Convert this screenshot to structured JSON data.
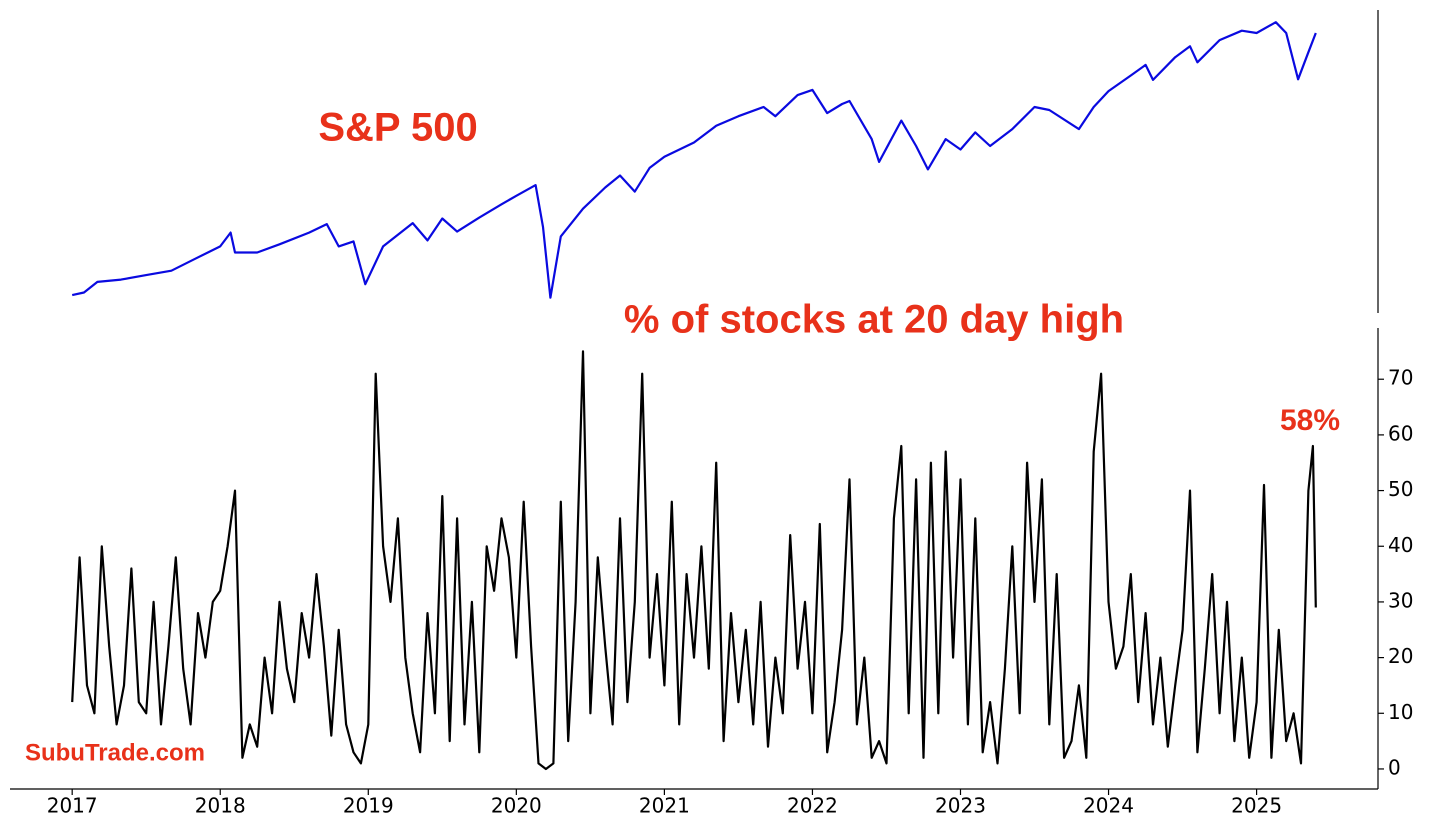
{
  "chart_data": [
    {
      "type": "line",
      "title": "S&P 500",
      "color": "#0a0ae0",
      "log_scale": true,
      "y_axis_side": "right",
      "xlim": [
        2016.58,
        2025.82
      ],
      "ylim": [
        2115,
        6420
      ],
      "x": [
        2017.0,
        2017.08,
        2017.17,
        2017.33,
        2017.5,
        2017.67,
        2017.83,
        2018.0,
        2018.07,
        2018.1,
        2018.25,
        2018.4,
        2018.6,
        2018.72,
        2018.8,
        2018.9,
        2018.98,
        2019.1,
        2019.3,
        2019.4,
        2019.5,
        2019.6,
        2019.75,
        2019.9,
        2020.0,
        2020.13,
        2020.18,
        2020.23,
        2020.3,
        2020.45,
        2020.6,
        2020.7,
        2020.8,
        2020.9,
        2021.0,
        2021.2,
        2021.35,
        2021.5,
        2021.67,
        2021.75,
        2021.9,
        2022.0,
        2022.1,
        2022.2,
        2022.25,
        2022.4,
        2022.45,
        2022.6,
        2022.7,
        2022.78,
        2022.9,
        2023.0,
        2023.1,
        2023.2,
        2023.35,
        2023.5,
        2023.6,
        2023.8,
        2023.9,
        2024.0,
        2024.15,
        2024.25,
        2024.3,
        2024.45,
        2024.55,
        2024.6,
        2024.75,
        2024.9,
        2025.0,
        2025.13,
        2025.2,
        2025.28,
        2025.35,
        2025.4
      ],
      "values": [
        2258,
        2280,
        2370,
        2390,
        2430,
        2470,
        2580,
        2700,
        2840,
        2640,
        2640,
        2720,
        2840,
        2930,
        2700,
        2750,
        2350,
        2700,
        2940,
        2760,
        2990,
        2850,
        3000,
        3150,
        3250,
        3380,
        2900,
        2237,
        2800,
        3100,
        3350,
        3500,
        3300,
        3600,
        3750,
        3950,
        4200,
        4350,
        4500,
        4350,
        4700,
        4790,
        4400,
        4550,
        4600,
        4000,
        3680,
        4280,
        3900,
        3580,
        4000,
        3850,
        4100,
        3900,
        4150,
        4500,
        4450,
        4150,
        4500,
        4770,
        5050,
        5250,
        4970,
        5400,
        5620,
        5300,
        5750,
        5950,
        5900,
        6140,
        5900,
        4980,
        5500,
        5900
      ]
    },
    {
      "type": "line",
      "title": "% of stocks at 20 day high",
      "annotation": "58%",
      "watermark": "SubuTrade.com",
      "color": "#000000",
      "y_axis_side": "right",
      "xlim": [
        2016.58,
        2025.82
      ],
      "ylim": [
        -3.6,
        79.2
      ],
      "xticks": [
        2017,
        2018,
        2019,
        2020,
        2021,
        2022,
        2023,
        2024,
        2025
      ],
      "yticks": [
        0,
        10,
        20,
        30,
        40,
        50,
        60,
        70
      ],
      "x": [
        2017.0,
        2017.05,
        2017.1,
        2017.15,
        2017.2,
        2017.25,
        2017.3,
        2017.35,
        2017.4,
        2017.45,
        2017.5,
        2017.55,
        2017.6,
        2017.65,
        2017.7,
        2017.75,
        2017.8,
        2017.85,
        2017.9,
        2017.95,
        2018.0,
        2018.05,
        2018.1,
        2018.15,
        2018.2,
        2018.25,
        2018.3,
        2018.35,
        2018.4,
        2018.45,
        2018.5,
        2018.55,
        2018.6,
        2018.65,
        2018.7,
        2018.75,
        2018.8,
        2018.85,
        2018.9,
        2018.95,
        2019.0,
        2019.05,
        2019.1,
        2019.15,
        2019.2,
        2019.25,
        2019.3,
        2019.35,
        2019.4,
        2019.45,
        2019.5,
        2019.55,
        2019.6,
        2019.65,
        2019.7,
        2019.75,
        2019.8,
        2019.85,
        2019.9,
        2019.95,
        2020.0,
        2020.05,
        2020.1,
        2020.15,
        2020.2,
        2020.25,
        2020.3,
        2020.35,
        2020.4,
        2020.45,
        2020.5,
        2020.55,
        2020.6,
        2020.65,
        2020.7,
        2020.75,
        2020.8,
        2020.85,
        2020.9,
        2020.95,
        2021.0,
        2021.05,
        2021.1,
        2021.15,
        2021.2,
        2021.25,
        2021.3,
        2021.35,
        2021.4,
        2021.45,
        2021.5,
        2021.55,
        2021.6,
        2021.65,
        2021.7,
        2021.75,
        2021.8,
        2021.85,
        2021.9,
        2021.95,
        2022.0,
        2022.05,
        2022.1,
        2022.15,
        2022.2,
        2022.25,
        2022.3,
        2022.35,
        2022.4,
        2022.45,
        2022.5,
        2022.55,
        2022.6,
        2022.65,
        2022.7,
        2022.75,
        2022.8,
        2022.85,
        2022.9,
        2022.95,
        2023.0,
        2023.05,
        2023.1,
        2023.15,
        2023.2,
        2023.25,
        2023.3,
        2023.35,
        2023.4,
        2023.45,
        2023.5,
        2023.55,
        2023.6,
        2023.65,
        2023.7,
        2023.75,
        2023.8,
        2023.85,
        2023.9,
        2023.95,
        2024.0,
        2024.05,
        2024.1,
        2024.15,
        2024.2,
        2024.25,
        2024.3,
        2024.35,
        2024.4,
        2024.45,
        2024.5,
        2024.55,
        2024.6,
        2024.65,
        2024.7,
        2024.75,
        2024.8,
        2024.85,
        2024.9,
        2024.95,
        2025.0,
        2025.05,
        2025.1,
        2025.15,
        2025.2,
        2025.25,
        2025.3,
        2025.35,
        2025.38,
        2025.4
      ],
      "values": [
        12,
        38,
        15,
        10,
        40,
        22,
        8,
        15,
        36,
        12,
        10,
        30,
        8,
        22,
        38,
        18,
        8,
        28,
        20,
        30,
        32,
        40,
        50,
        2,
        8,
        4,
        20,
        10,
        30,
        18,
        12,
        28,
        20,
        35,
        22,
        6,
        25,
        8,
        3,
        1,
        8,
        71,
        40,
        30,
        45,
        20,
        10,
        3,
        28,
        10,
        49,
        5,
        45,
        8,
        30,
        3,
        40,
        32,
        45,
        38,
        20,
        48,
        22,
        1,
        0,
        1,
        48,
        5,
        30,
        75,
        10,
        38,
        22,
        8,
        45,
        12,
        30,
        71,
        20,
        35,
        15,
        48,
        8,
        35,
        20,
        40,
        18,
        55,
        5,
        28,
        12,
        25,
        8,
        30,
        4,
        20,
        10,
        42,
        18,
        30,
        10,
        44,
        3,
        12,
        25,
        52,
        8,
        20,
        2,
        5,
        1,
        45,
        58,
        10,
        52,
        2,
        55,
        10,
        57,
        20,
        52,
        8,
        45,
        3,
        12,
        1,
        18,
        40,
        10,
        55,
        30,
        52,
        8,
        35,
        2,
        5,
        15,
        2,
        57,
        71,
        30,
        18,
        22,
        35,
        12,
        28,
        8,
        20,
        4,
        15,
        25,
        50,
        3,
        18,
        35,
        10,
        30,
        5,
        20,
        2,
        12,
        51,
        2,
        25,
        5,
        10,
        1,
        50,
        58,
        29
      ]
    }
  ]
}
